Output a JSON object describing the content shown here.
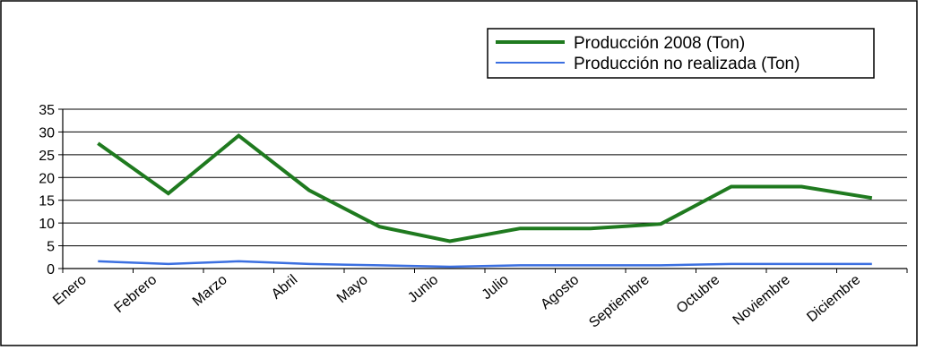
{
  "chart_data": {
    "type": "line",
    "categories": [
      "Enero",
      "Febrero",
      "Marzo",
      "Abril",
      "Mayo",
      "Junio",
      "Julio",
      "Agosto",
      "Septiembre",
      "Octubre",
      "Noviembre",
      "Diciembre"
    ],
    "series": [
      {
        "name": "Producción 2008 (Ton)",
        "color": "#1f7a1f",
        "values": [
          27.5,
          16.5,
          29.2,
          17.2,
          9.2,
          6.0,
          8.8,
          8.8,
          9.8,
          18.0,
          18.0,
          15.5
        ]
      },
      {
        "name": "Producción no realizada (Ton)",
        "color": "#3b6fe0",
        "values": [
          1.6,
          1.0,
          1.6,
          1.0,
          0.7,
          0.4,
          0.7,
          0.7,
          0.7,
          1.0,
          1.0,
          1.0
        ]
      }
    ],
    "ylim": [
      0,
      35
    ],
    "yticks": [
      0,
      5,
      10,
      15,
      20,
      25,
      30,
      35
    ],
    "grid": true,
    "legend_position": "top-right",
    "title": "",
    "xlabel": "",
    "ylabel": ""
  }
}
